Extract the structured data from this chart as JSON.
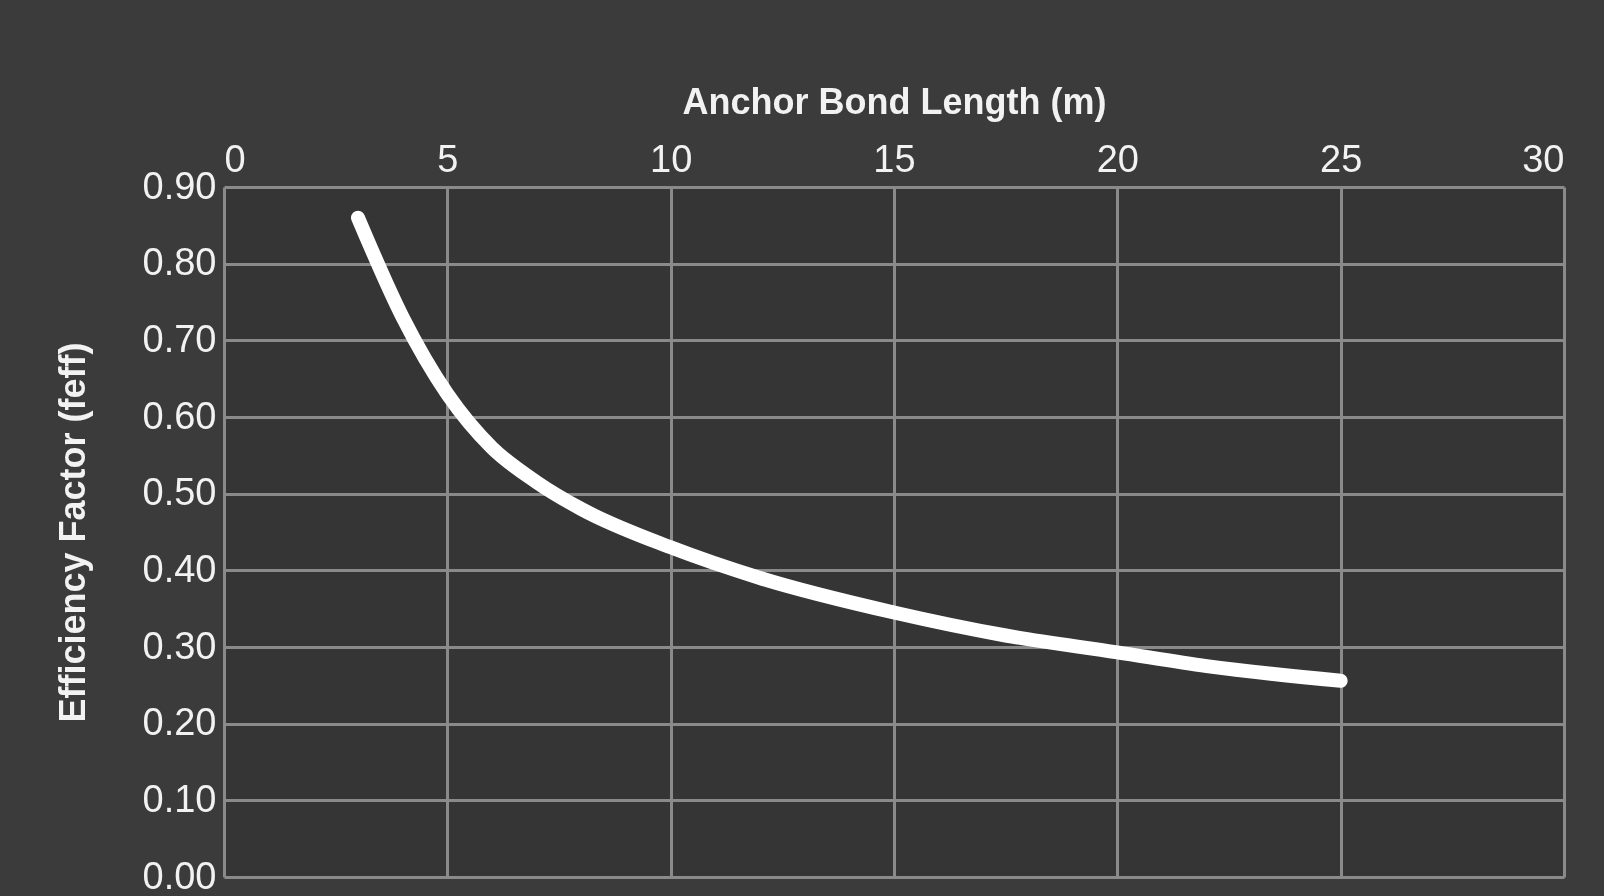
{
  "chart_data": {
    "type": "line",
    "xlabel": "Anchor Bond Length (m)",
    "ylabel": "Efficiency Factor (feff)",
    "x": [
      3,
      4,
      5,
      6,
      7,
      8,
      10,
      12,
      15,
      17.5,
      20,
      22,
      25
    ],
    "series": [
      {
        "color": "#ffffff",
        "values": [
          0.86,
          0.73,
          0.63,
          0.56,
          0.515,
          0.48,
          0.43,
          0.39,
          0.345,
          0.315,
          0.293,
          0.275,
          0.256
        ]
      }
    ],
    "xlim": [
      0,
      30
    ],
    "xticks": [
      0,
      5,
      10,
      15,
      20,
      25,
      30
    ],
    "ylim": [
      0,
      0.9
    ],
    "yticks": [
      {
        "value": 0,
        "label": "0.00"
      },
      {
        "value": 0.1,
        "label": "0.10"
      },
      {
        "value": 0.2,
        "label": "0.20"
      },
      {
        "value": 0.3,
        "label": "0.30"
      },
      {
        "value": 0.4,
        "label": "0.40"
      },
      {
        "value": 0.5,
        "label": "0.50"
      },
      {
        "value": 0.6,
        "label": "0.60"
      },
      {
        "value": 0.7,
        "label": "0.70"
      },
      {
        "value": 0.8,
        "label": "0.80"
      },
      {
        "value": 0.9,
        "label": "0.90"
      }
    ],
    "grid": true,
    "marker": "none",
    "line_style": "solid"
  }
}
